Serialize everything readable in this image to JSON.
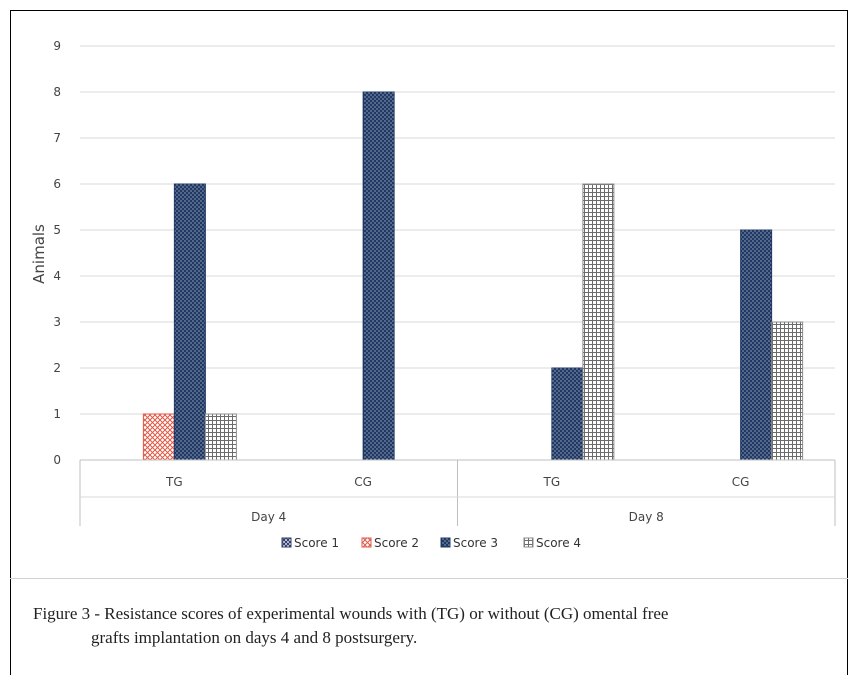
{
  "chart_data": {
    "type": "bar",
    "ylabel": "Animals",
    "ylim": [
      0,
      9
    ],
    "yticks": [
      0,
      1,
      2,
      3,
      4,
      5,
      6,
      7,
      8,
      9
    ],
    "grid": true,
    "legend_position": "bottom",
    "groups": [
      {
        "label": "Day 4",
        "categories": [
          "TG",
          "CG"
        ]
      },
      {
        "label": "Day 8",
        "categories": [
          "TG",
          "CG"
        ]
      }
    ],
    "categories": [
      "TG",
      "CG",
      "TG",
      "CG"
    ],
    "series": [
      {
        "name": "Score 1",
        "values": [
          0,
          0,
          0,
          0
        ],
        "color": "#2f3e6b",
        "pattern": "cross"
      },
      {
        "name": "Score 2",
        "values": [
          1,
          0,
          0,
          0
        ],
        "color": "#e05a47",
        "pattern": "crosshatch"
      },
      {
        "name": "Score 3",
        "values": [
          6,
          8,
          2,
          5
        ],
        "color": "#1f3864",
        "pattern": "dots"
      },
      {
        "name": "Score 4",
        "values": [
          1,
          0,
          6,
          3
        ],
        "color": "#8c8c8c",
        "pattern": "grid"
      }
    ]
  },
  "caption": {
    "line1": "Figure 3 - Resistance scores of experimental wounds with (TG) or without (CG) omental free",
    "line2": "grafts implantation on days 4 and 8 postsurgery."
  }
}
